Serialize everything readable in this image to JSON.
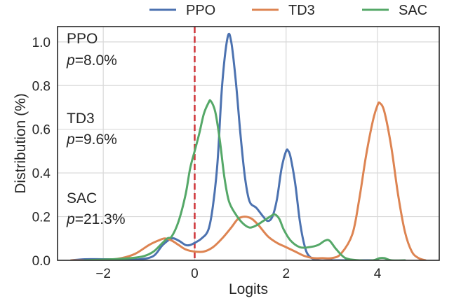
{
  "chart_data": {
    "type": "line",
    "xlabel": "Logits",
    "ylabel": "Distribution (%)",
    "xlim": [
      -3.0,
      5.35
    ],
    "ylim": [
      0.0,
      1.07
    ],
    "x_ticks": [
      -2,
      0,
      2,
      4
    ],
    "x_tick_labels": [
      "−2",
      "0",
      "2",
      "4"
    ],
    "y_ticks": [
      0.0,
      0.2,
      0.4,
      0.6,
      0.8,
      1.0
    ],
    "y_tick_labels": [
      "0.0",
      "0.2",
      "0.4",
      "0.6",
      "0.8",
      "1.0"
    ],
    "grid": true,
    "legend_position": "top-center, above plot",
    "reference_line": {
      "x": 0,
      "style": "dashed",
      "color": "#d0393d"
    },
    "series": [
      {
        "name": "PPO",
        "color": "#4c72b0",
        "points": [
          [
            -2.7,
            0.0
          ],
          [
            -2.4,
            0.005
          ],
          [
            -2.0,
            0.005
          ],
          [
            -1.6,
            0.005
          ],
          [
            -1.2,
            0.005
          ],
          [
            -0.9,
            0.02
          ],
          [
            -0.7,
            0.07
          ],
          [
            -0.5,
            0.1
          ],
          [
            -0.35,
            0.09
          ],
          [
            -0.2,
            0.07
          ],
          [
            -0.1,
            0.07
          ],
          [
            0.0,
            0.08
          ],
          [
            0.15,
            0.1
          ],
          [
            0.3,
            0.14
          ],
          [
            0.4,
            0.25
          ],
          [
            0.5,
            0.45
          ],
          [
            0.6,
            0.8
          ],
          [
            0.72,
            1.02
          ],
          [
            0.8,
            1.0
          ],
          [
            0.9,
            0.82
          ],
          [
            1.0,
            0.58
          ],
          [
            1.1,
            0.38
          ],
          [
            1.2,
            0.27
          ],
          [
            1.35,
            0.24
          ],
          [
            1.5,
            0.2
          ],
          [
            1.6,
            0.18
          ],
          [
            1.7,
            0.2
          ],
          [
            1.8,
            0.28
          ],
          [
            1.9,
            0.42
          ],
          [
            2.0,
            0.5
          ],
          [
            2.05,
            0.5
          ],
          [
            2.1,
            0.47
          ],
          [
            2.2,
            0.35
          ],
          [
            2.3,
            0.18
          ],
          [
            2.4,
            0.07
          ],
          [
            2.5,
            0.02
          ],
          [
            2.7,
            0.0
          ],
          [
            3.0,
            0.0
          ],
          [
            4.0,
            0.0
          ]
        ]
      },
      {
        "name": "TD3",
        "color": "#dd8452",
        "points": [
          [
            -2.7,
            0.0
          ],
          [
            -2.0,
            0.0
          ],
          [
            -1.6,
            0.01
          ],
          [
            -1.3,
            0.03
          ],
          [
            -1.0,
            0.07
          ],
          [
            -0.8,
            0.09
          ],
          [
            -0.65,
            0.1
          ],
          [
            -0.5,
            0.09
          ],
          [
            -0.35,
            0.07
          ],
          [
            -0.2,
            0.05
          ],
          [
            0.0,
            0.04
          ],
          [
            0.2,
            0.04
          ],
          [
            0.4,
            0.06
          ],
          [
            0.6,
            0.1
          ],
          [
            0.8,
            0.15
          ],
          [
            0.95,
            0.19
          ],
          [
            1.1,
            0.2
          ],
          [
            1.25,
            0.19
          ],
          [
            1.4,
            0.16
          ],
          [
            1.6,
            0.11
          ],
          [
            1.8,
            0.08
          ],
          [
            2.0,
            0.06
          ],
          [
            2.2,
            0.04
          ],
          [
            2.4,
            0.02
          ],
          [
            2.6,
            0.01
          ],
          [
            2.8,
            0.01
          ],
          [
            3.0,
            0.01
          ],
          [
            3.2,
            0.03
          ],
          [
            3.45,
            0.12
          ],
          [
            3.6,
            0.28
          ],
          [
            3.75,
            0.48
          ],
          [
            3.9,
            0.64
          ],
          [
            4.0,
            0.71
          ],
          [
            4.05,
            0.72
          ],
          [
            4.15,
            0.68
          ],
          [
            4.3,
            0.52
          ],
          [
            4.45,
            0.3
          ],
          [
            4.6,
            0.13
          ],
          [
            4.75,
            0.04
          ],
          [
            4.9,
            0.01
          ],
          [
            5.05,
            0.0
          ]
        ]
      },
      {
        "name": "SAC",
        "color": "#55a868",
        "points": [
          [
            -2.4,
            0.0
          ],
          [
            -1.8,
            0.005
          ],
          [
            -1.4,
            0.01
          ],
          [
            -1.1,
            0.02
          ],
          [
            -0.9,
            0.04
          ],
          [
            -0.75,
            0.07
          ],
          [
            -0.6,
            0.1
          ],
          [
            -0.5,
            0.11
          ],
          [
            -0.35,
            0.18
          ],
          [
            -0.2,
            0.3
          ],
          [
            -0.1,
            0.42
          ],
          [
            0.0,
            0.5
          ],
          [
            0.1,
            0.58
          ],
          [
            0.2,
            0.67
          ],
          [
            0.3,
            0.72
          ],
          [
            0.35,
            0.73
          ],
          [
            0.45,
            0.68
          ],
          [
            0.55,
            0.55
          ],
          [
            0.65,
            0.38
          ],
          [
            0.75,
            0.27
          ],
          [
            0.9,
            0.21
          ],
          [
            1.05,
            0.17
          ],
          [
            1.2,
            0.15
          ],
          [
            1.35,
            0.16
          ],
          [
            1.5,
            0.18
          ],
          [
            1.65,
            0.2
          ],
          [
            1.75,
            0.21
          ],
          [
            1.85,
            0.19
          ],
          [
            1.95,
            0.14
          ],
          [
            2.1,
            0.09
          ],
          [
            2.3,
            0.06
          ],
          [
            2.5,
            0.06
          ],
          [
            2.7,
            0.07
          ],
          [
            2.85,
            0.09
          ],
          [
            2.95,
            0.09
          ],
          [
            3.1,
            0.05
          ],
          [
            3.3,
            0.01
          ],
          [
            3.6,
            0.0
          ],
          [
            3.9,
            0.0
          ],
          [
            4.05,
            0.01
          ],
          [
            4.15,
            0.01
          ],
          [
            4.3,
            0.0
          ],
          [
            4.6,
            0.0
          ]
        ]
      }
    ],
    "annotations": [
      {
        "name": "PPO",
        "p": "=8.0%"
      },
      {
        "name": "TD3",
        "p": "=9.6%"
      },
      {
        "name": "SAC",
        "p": "=21.3%"
      }
    ]
  }
}
